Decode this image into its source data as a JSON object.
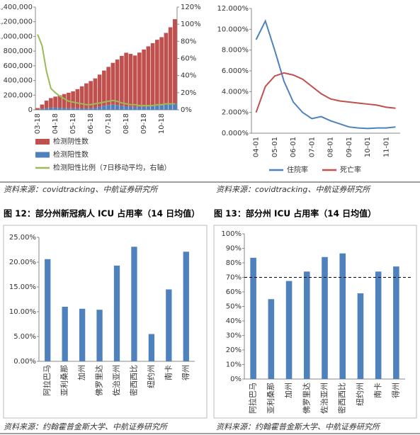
{
  "chart_data": [
    {
      "type": "combo",
      "source": "资料来源：covidtracking、中航证券研究所",
      "categories": [
        "03-18",
        null,
        null,
        null,
        "04-18",
        null,
        null,
        null,
        "05-18",
        null,
        null,
        null,
        "06-18",
        null,
        null,
        null,
        "07-18",
        null,
        null,
        null,
        "08-18",
        null,
        null,
        null,
        "09-18",
        null,
        null,
        null,
        "10-18",
        null,
        null,
        null
      ],
      "series": [
        {
          "name": "检测阴性数",
          "type": "bar",
          "color": "#c0504d",
          "values": [
            20000,
            60000,
            100000,
            130000,
            150000,
            170000,
            190000,
            210000,
            230000,
            260000,
            300000,
            340000,
            370000,
            400000,
            440000,
            480000,
            520000,
            570000,
            620000,
            680000,
            730000,
            720000,
            700000,
            740000,
            780000,
            820000,
            860000,
            900000,
            930000,
            980000,
            1050000,
            1150000
          ]
        },
        {
          "name": "检测阳性数",
          "type": "bar",
          "color": "#4f81bd",
          "values": [
            3000,
            12000,
            25000,
            30000,
            30000,
            28000,
            25000,
            22000,
            22000,
            21000,
            20000,
            20000,
            22000,
            28000,
            40000,
            55000,
            65000,
            70000,
            65000,
            55000,
            48000,
            42000,
            40000,
            40000,
            42000,
            45000,
            48000,
            55000,
            60000,
            68000,
            75000,
            85000
          ]
        },
        {
          "name": "检测阳性比例（7日移动平均，右轴）",
          "type": "line",
          "axis": "y2",
          "color": "#9bbb59",
          "values": [
            88,
            75,
            45,
            25,
            20,
            16,
            13,
            10,
            9,
            8,
            7,
            6,
            6,
            7,
            8,
            9,
            10,
            11,
            10,
            8,
            7,
            6,
            6,
            5,
            5,
            5,
            5,
            6,
            6,
            7,
            7,
            7
          ]
        }
      ],
      "ylim": [
        0,
        1400000
      ],
      "yticks": [
        0,
        {
          "value": 200000,
          "label": "200,000"
        },
        {
          "value": 400000,
          "label": "400,000"
        },
        {
          "value": 600000,
          "label": "600,000"
        },
        {
          "value": 800000,
          "label": "800,000"
        },
        {
          "value": 1000000,
          "label": "1,000,000"
        },
        {
          "value": 1200000,
          "label": "1,200,000"
        },
        {
          "value": 1400000,
          "label": "1,400,000"
        }
      ],
      "y2lim": [
        0,
        120
      ],
      "y2ticks": [
        {
          "value": 0,
          "label": "0%"
        },
        {
          "value": 20,
          "label": "20%"
        },
        {
          "value": 40,
          "label": "40%"
        },
        {
          "value": 60,
          "label": "60%"
        },
        {
          "value": 80,
          "label": "80%"
        },
        {
          "value": 100,
          "label": "100%"
        },
        {
          "value": 120,
          "label": "120%"
        }
      ],
      "legend": "bottom"
    },
    {
      "type": "line",
      "source": "资料来源：covidtracking、中航证券研究所",
      "categories": [
        "04-01",
        null,
        "05-01",
        null,
        "06-01",
        null,
        "07-01",
        null,
        "08-01",
        null,
        "09-01",
        null,
        "10-01",
        null,
        "11-01",
        null
      ],
      "series": [
        {
          "name": "住院率",
          "color": "#4f81bd",
          "values": [
            9.0,
            10.8,
            8.0,
            5.0,
            3.0,
            2.0,
            1.4,
            1.6,
            1.2,
            0.9,
            0.6,
            0.5,
            0.45,
            0.5,
            0.5,
            0.6
          ]
        },
        {
          "name": "死亡率",
          "color": "#c0504d",
          "values": [
            2.0,
            4.5,
            5.5,
            5.8,
            5.6,
            5.2,
            4.5,
            3.8,
            3.3,
            3.1,
            3.0,
            2.9,
            2.8,
            2.7,
            2.5,
            2.4
          ]
        }
      ],
      "ylim": [
        0,
        12
      ],
      "yticks": [
        {
          "value": 0,
          "label": "0.000%"
        },
        {
          "value": 2,
          "label": "2.000%"
        },
        {
          "value": 4,
          "label": "4.000%"
        },
        {
          "value": 6,
          "label": "6.000%"
        },
        {
          "value": 8,
          "label": "8.000%"
        },
        {
          "value": 10,
          "label": "10.000%"
        },
        {
          "value": 12,
          "label": "12.000%"
        }
      ],
      "legend": "bottom"
    },
    {
      "type": "bar",
      "title": "图 12：部分州新冠病人 ICU 占用率（14 日均值）",
      "source": "资料来源：约翰霍普金斯大学、中航证券研究所",
      "categories": [
        "阿拉巴马",
        "亚利桑那",
        "加州",
        "佛罗里达",
        "佐治亚州",
        "密西西比",
        "纽约州",
        "南卡",
        "得州"
      ],
      "values": [
        20.6,
        11.0,
        10.6,
        10.4,
        19.3,
        23.1,
        5.5,
        14.5,
        22.1
      ],
      "color": "#4f81bd",
      "ylim": [
        0,
        25
      ],
      "yticks": [
        {
          "value": 0,
          "label": "0.00%"
        },
        {
          "value": 5,
          "label": "5.00%"
        },
        {
          "value": 10,
          "label": "10.00%"
        },
        {
          "value": 15,
          "label": "15.00%"
        },
        {
          "value": 20,
          "label": "20.00%"
        },
        {
          "value": 25,
          "label": "25.00%"
        }
      ]
    },
    {
      "type": "bar",
      "title": "图 13：部分州 ICU 占用率（14 日均值）",
      "source": "资料来源：约翰霍普金斯大学、中航证券研究所",
      "categories": [
        "阿拉巴马",
        "亚利桑那",
        "加州",
        "佛罗里达",
        "佐治亚州",
        "密西西比",
        "纽约州",
        "南卡",
        "得州"
      ],
      "values": [
        83.5,
        55,
        67.5,
        74,
        84,
        86.5,
        59,
        74,
        77.5
      ],
      "color": "#4f81bd",
      "reference_line": 70,
      "ylim": [
        0,
        100
      ],
      "yticks": [
        {
          "value": 0,
          "label": "0%"
        },
        {
          "value": 10,
          "label": "10%"
        },
        {
          "value": 20,
          "label": "20%"
        },
        {
          "value": 30,
          "label": "30%"
        },
        {
          "value": 40,
          "label": "40%"
        },
        {
          "value": 50,
          "label": "50%"
        },
        {
          "value": 60,
          "label": "60%"
        },
        {
          "value": 70,
          "label": "70%"
        },
        {
          "value": 80,
          "label": "80%"
        },
        {
          "value": 90,
          "label": "90%"
        },
        {
          "value": 100,
          "label": "100%"
        }
      ]
    }
  ]
}
